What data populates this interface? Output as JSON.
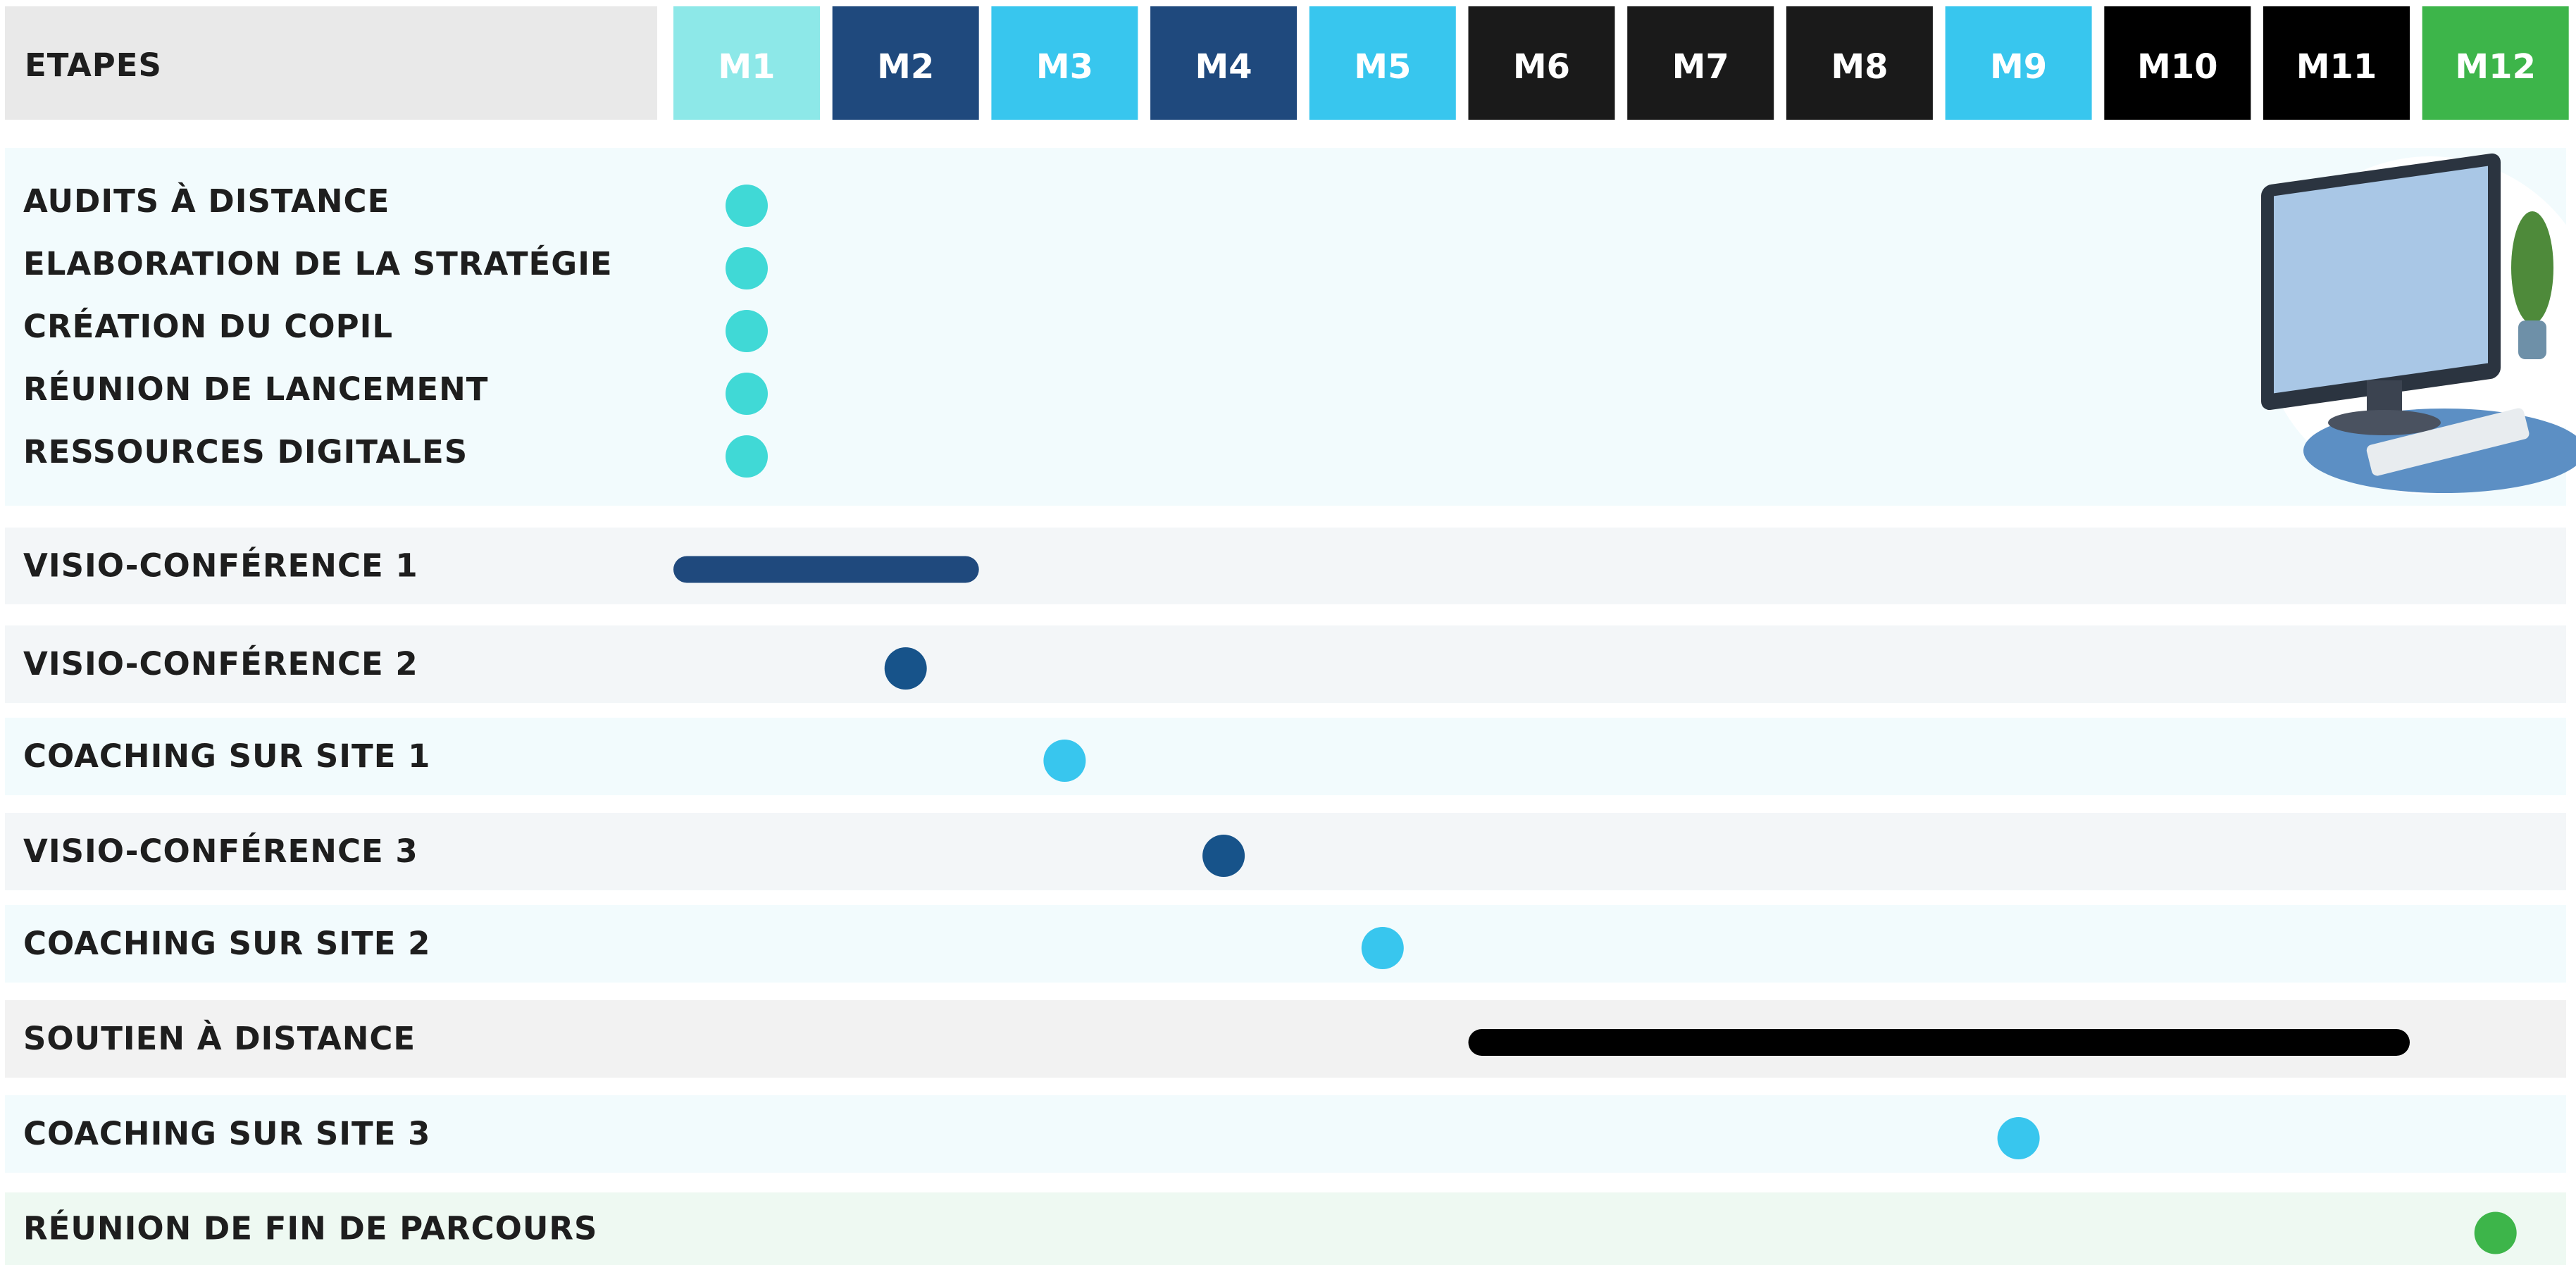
{
  "header": {
    "title": "ETAPES",
    "months": [
      {
        "label": "M1",
        "color": "#8de8e8"
      },
      {
        "label": "M2",
        "color": "#1f497d"
      },
      {
        "label": "M3",
        "color": "#38c6ee"
      },
      {
        "label": "M4",
        "color": "#1f497d"
      },
      {
        "label": "M5",
        "color": "#38c6ee"
      },
      {
        "label": "M6",
        "color": "#1a1a1a"
      },
      {
        "label": "M7",
        "color": "#1a1a1a"
      },
      {
        "label": "M8",
        "color": "#1a1a1a"
      },
      {
        "label": "M9",
        "color": "#38c6ee"
      },
      {
        "label": "M10",
        "color": "#000000"
      },
      {
        "label": "M11",
        "color": "#000000"
      },
      {
        "label": "M12",
        "color": "#3db54a"
      }
    ]
  },
  "phases": [
    {
      "background": "#f2fbfd",
      "rows": [
        {
          "label": "AUDITS À DISTANCE",
          "start": "M1",
          "end": "M1",
          "color": "#40d9d6"
        },
        {
          "label": "ELABORATION DE LA STRATÉGIE",
          "start": "M1",
          "end": "M1",
          "color": "#40d9d6"
        },
        {
          "label": "CRÉATION DU COPIL",
          "start": "M1",
          "end": "M1",
          "color": "#40d9d6"
        },
        {
          "label": "RÉUNION DE LANCEMENT",
          "start": "M1",
          "end": "M1",
          "color": "#40d9d6"
        },
        {
          "label": "RESSOURCES DIGITALES",
          "start": "M1",
          "end": "M1",
          "color": "#40d9d6"
        }
      ]
    },
    {
      "background": "#f3f6f8",
      "rows": [
        {
          "label": "VISIO-CONFÉRENCE 1",
          "start": "M1",
          "end": "M2",
          "color": "#1f497d"
        }
      ]
    },
    {
      "background": "#f3f6f8",
      "rows": [
        {
          "label": "VISIO-CONFÉRENCE 2",
          "start": "M2",
          "end": "M2",
          "color": "#17538a"
        }
      ]
    },
    {
      "background": "#f2fbfd",
      "rows": [
        {
          "label": "COACHING SUR SITE 1",
          "start": "M3",
          "end": "M3",
          "color": "#38c6ee"
        }
      ]
    },
    {
      "background": "#f3f6f8",
      "rows": [
        {
          "label": "VISIO-CONFÉRENCE 3",
          "start": "M4",
          "end": "M4",
          "color": "#17538a"
        }
      ]
    },
    {
      "background": "#f2fbfd",
      "rows": [
        {
          "label": "COACHING SUR SITE 2",
          "start": "M5",
          "end": "M5",
          "color": "#38c6ee"
        }
      ]
    },
    {
      "background": "#f2f2f2",
      "rows": [
        {
          "label": "SOUTIEN À DISTANCE",
          "start": "M6",
          "end": "M11",
          "color": "#000000"
        }
      ]
    },
    {
      "background": "#f2fbfd",
      "rows": [
        {
          "label": "COACHING SUR SITE 3",
          "start": "M9",
          "end": "M9",
          "color": "#38c6ee"
        }
      ]
    },
    {
      "background": "#eef9f2",
      "rows": [
        {
          "label": "RÉUNION DE FIN DE PARCOURS",
          "start": "M12",
          "end": "M12",
          "color": "#3db54a"
        }
      ]
    }
  ]
}
